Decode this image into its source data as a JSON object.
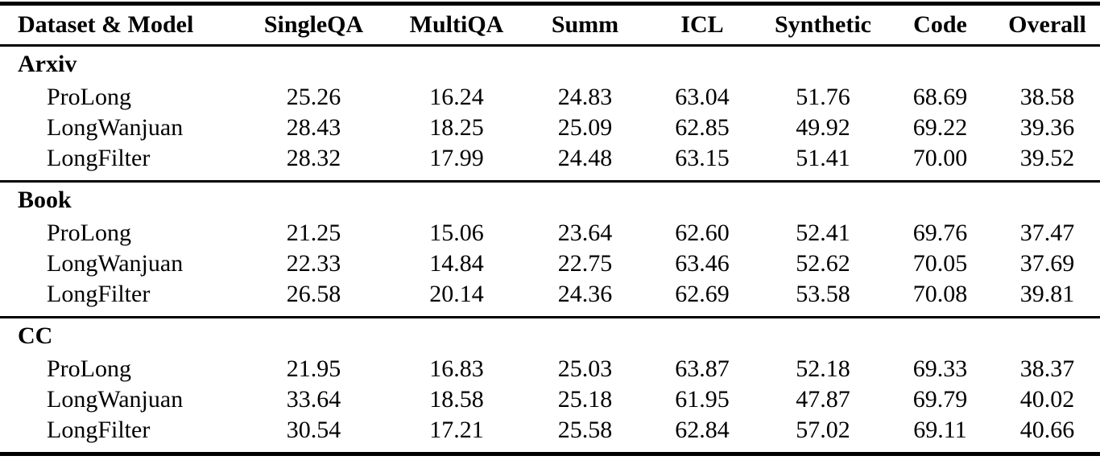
{
  "table": {
    "columns": [
      {
        "key": "dataset-model",
        "label": "Dataset & Model"
      },
      {
        "key": "singleqa",
        "label": "SingleQA"
      },
      {
        "key": "multiqa",
        "label": "MultiQA"
      },
      {
        "key": "summ",
        "label": "Summ"
      },
      {
        "key": "icl",
        "label": "ICL"
      },
      {
        "key": "synthetic",
        "label": "Synthetic"
      },
      {
        "key": "code",
        "label": "Code"
      },
      {
        "key": "overall",
        "label": "Overall"
      }
    ],
    "sections": [
      {
        "name": "Arxiv",
        "rows": [
          {
            "model": "ProLong",
            "values": [
              "25.26",
              "16.24",
              "24.83",
              "63.04",
              "51.76",
              "68.69",
              "38.58"
            ],
            "bold_overall": false
          },
          {
            "model": "LongWanjuan",
            "values": [
              "28.43",
              "18.25",
              "25.09",
              "62.85",
              "49.92",
              "69.22",
              "39.36"
            ],
            "bold_overall": false
          },
          {
            "model": "LongFilter",
            "values": [
              "28.32",
              "17.99",
              "24.48",
              "63.15",
              "51.41",
              "70.00",
              "39.52"
            ],
            "bold_overall": true
          }
        ]
      },
      {
        "name": "Book",
        "rows": [
          {
            "model": "ProLong",
            "values": [
              "21.25",
              "15.06",
              "23.64",
              "62.60",
              "52.41",
              "69.76",
              "37.47"
            ],
            "bold_overall": false
          },
          {
            "model": "LongWanjuan",
            "values": [
              "22.33",
              "14.84",
              "22.75",
              "63.46",
              "52.62",
              "70.05",
              "37.69"
            ],
            "bold_overall": false
          },
          {
            "model": "LongFilter",
            "values": [
              "26.58",
              "20.14",
              "24.36",
              "62.69",
              "53.58",
              "70.08",
              "39.81"
            ],
            "bold_overall": true
          }
        ]
      },
      {
        "name": "CC",
        "rows": [
          {
            "model": "ProLong",
            "values": [
              "21.95",
              "16.83",
              "25.03",
              "63.87",
              "52.18",
              "69.33",
              "38.37"
            ],
            "bold_overall": false
          },
          {
            "model": "LongWanjuan",
            "values": [
              "33.64",
              "18.58",
              "25.18",
              "61.95",
              "47.87",
              "69.79",
              "40.02"
            ],
            "bold_overall": false
          },
          {
            "model": "LongFilter",
            "values": [
              "30.54",
              "17.21",
              "25.58",
              "62.84",
              "57.02",
              "69.11",
              "40.66"
            ],
            "bold_overall": true
          }
        ]
      }
    ]
  },
  "colors": {
    "text": "#000000",
    "background": "#ffffff",
    "rule": "#000000"
  }
}
